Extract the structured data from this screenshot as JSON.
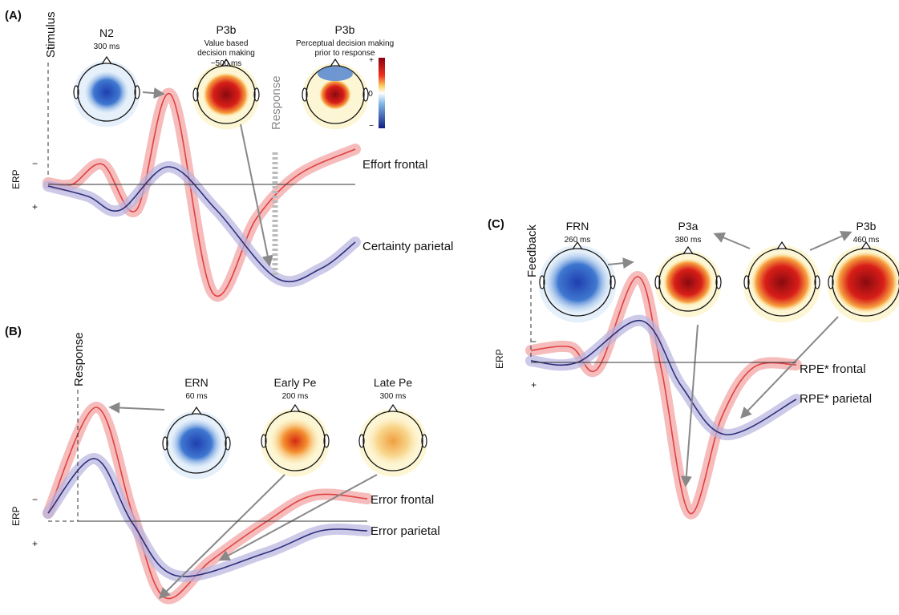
{
  "panels": [
    {
      "label": "(A)",
      "events": [
        "Stimulus",
        "Response"
      ],
      "axis": {
        "label": "ERP",
        "negative": "−",
        "positive": "+"
      },
      "topographies": [
        {
          "title": "N2",
          "lines": [
            "300 ms"
          ]
        },
        {
          "title": "P3b",
          "lines": [
            "Value based",
            "decision making",
            "~500 ms"
          ]
        },
        {
          "title": "P3b",
          "lines": [
            "Perceptual decision making",
            "prior to response"
          ]
        }
      ],
      "colorbar": [
        "+",
        "0",
        "−"
      ],
      "traces": [
        "Effort frontal",
        "Certainty parietal"
      ]
    },
    {
      "label": "(B)",
      "events": [
        "Response"
      ],
      "axis": {
        "label": "ERP",
        "negative": "−",
        "positive": "+"
      },
      "topographies": [
        {
          "title": "ERN",
          "lines": [
            "60 ms"
          ]
        },
        {
          "title": "Early Pe",
          "lines": [
            "200 ms"
          ]
        },
        {
          "title": "Late Pe",
          "lines": [
            "300 ms"
          ]
        }
      ],
      "traces": [
        "Error frontal",
        "Error parietal"
      ]
    },
    {
      "label": "(C)",
      "events": [
        "Feedback"
      ],
      "axis": {
        "label": "ERP",
        "negative": "−",
        "positive": "+"
      },
      "topographies": [
        {
          "title": "FRN",
          "lines": [
            "260 ms"
          ]
        },
        {
          "title": "P3a",
          "lines": [
            "380 ms"
          ]
        },
        {
          "title": "P3b",
          "lines": [
            "460 ms"
          ]
        }
      ],
      "traces": [
        "RPE* frontal",
        "RPE* parietal"
      ]
    }
  ]
}
